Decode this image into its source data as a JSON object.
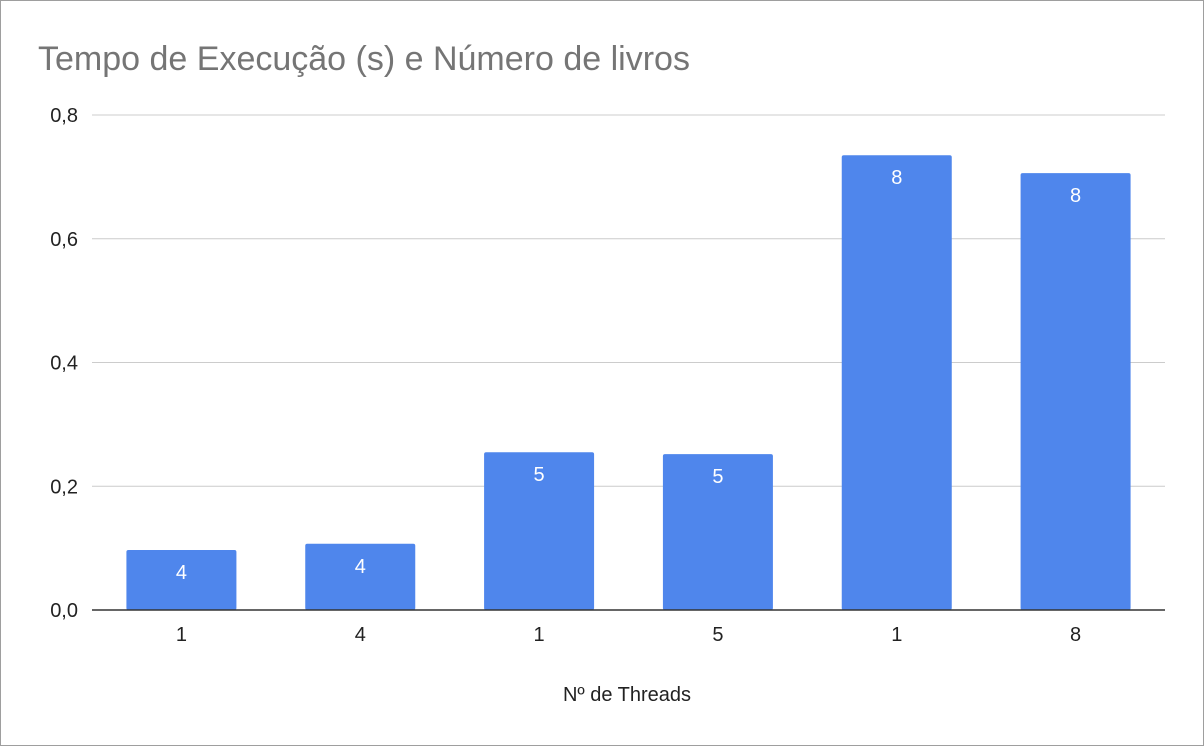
{
  "chart_data": {
    "type": "bar",
    "title": "Tempo de Execução (s) e Número de livros",
    "xlabel": "Nº de Threads",
    "ylabel": "",
    "categories": [
      "1",
      "4",
      "1",
      "5",
      "1",
      "8"
    ],
    "values": [
      0.097,
      0.107,
      0.255,
      0.252,
      0.735,
      0.706
    ],
    "data_labels": [
      "4",
      "4",
      "5",
      "5",
      "8",
      "8"
    ],
    "ylim": [
      0,
      0.8
    ],
    "yticks": [
      "0,0",
      "0,2",
      "0,4",
      "0,6",
      "0,8"
    ],
    "ytick_values": [
      0,
      0.2,
      0.4,
      0.6,
      0.8
    ],
    "grid": true,
    "bar_color": "#4f86ec"
  }
}
